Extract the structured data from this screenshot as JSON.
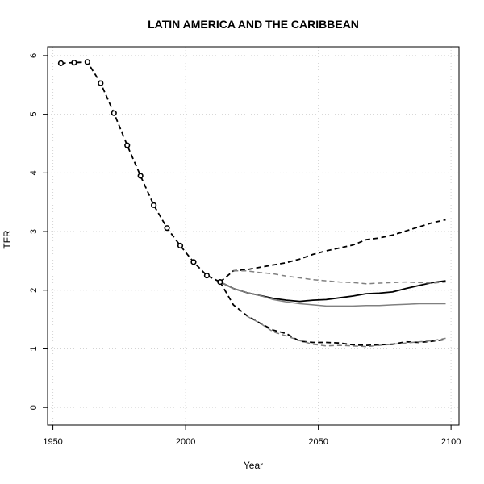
{
  "chart_data": {
    "type": "line",
    "title": "LATIN AMERICA AND THE CARIBBEAN",
    "xlabel": "Year",
    "ylabel": "TFR",
    "xlim": [
      1948,
      2103
    ],
    "ylim": [
      -0.3,
      6.15
    ],
    "x_ticks": [
      1950,
      2000,
      2050,
      2100
    ],
    "y_ticks": [
      0,
      1,
      2,
      3,
      4,
      5,
      6
    ],
    "grid": true,
    "series": [
      {
        "style": "observed",
        "color": "#000000",
        "dash": "dashed",
        "markers": true,
        "x": [
          1953,
          1958,
          1963,
          1968,
          1973,
          1978,
          1983,
          1988,
          1993,
          1998,
          2003,
          2008,
          2013
        ],
        "y": [
          5.87,
          5.88,
          5.89,
          5.53,
          5.02,
          4.47,
          3.95,
          3.45,
          3.06,
          2.76,
          2.48,
          2.25,
          2.14
        ]
      },
      {
        "style": "median",
        "color": "#000000",
        "dash": "solid",
        "x": [
          2013,
          2018,
          2023,
          2028,
          2033,
          2038,
          2043,
          2048,
          2053,
          2058,
          2063,
          2068,
          2073,
          2078,
          2083,
          2088,
          2093,
          2098
        ],
        "y": [
          2.14,
          2.03,
          1.96,
          1.91,
          1.86,
          1.83,
          1.81,
          1.83,
          1.84,
          1.87,
          1.9,
          1.94,
          1.95,
          1.97,
          2.03,
          2.08,
          2.13,
          2.16
        ]
      },
      {
        "style": "upper-80",
        "color": "#000000",
        "dash": "dashed",
        "x": [
          2013,
          2018,
          2023,
          2028,
          2033,
          2038,
          2043,
          2048,
          2053,
          2058,
          2063,
          2068,
          2073,
          2078,
          2083,
          2088,
          2093,
          2098
        ],
        "y": [
          2.14,
          2.33,
          2.35,
          2.39,
          2.43,
          2.47,
          2.53,
          2.61,
          2.67,
          2.72,
          2.77,
          2.86,
          2.89,
          2.94,
          3.01,
          3.08,
          3.15,
          3.2
        ]
      },
      {
        "style": "lower-80",
        "color": "#000000",
        "dash": "dashed",
        "x": [
          2013,
          2018,
          2023,
          2028,
          2033,
          2038,
          2043,
          2048,
          2053,
          2058,
          2063,
          2068,
          2073,
          2078,
          2083,
          2088,
          2093,
          2098
        ],
        "y": [
          2.14,
          1.75,
          1.57,
          1.44,
          1.32,
          1.26,
          1.13,
          1.11,
          1.11,
          1.1,
          1.07,
          1.06,
          1.07,
          1.08,
          1.12,
          1.11,
          1.13,
          1.16
        ]
      },
      {
        "style": "alt-median",
        "color": "#808080",
        "dash": "solid",
        "x": [
          2013,
          2018,
          2023,
          2028,
          2033,
          2038,
          2043,
          2048,
          2053,
          2058,
          2063,
          2068,
          2073,
          2078,
          2083,
          2088,
          2093,
          2098
        ],
        "y": [
          2.14,
          2.03,
          1.96,
          1.91,
          1.84,
          1.8,
          1.77,
          1.75,
          1.73,
          1.73,
          1.73,
          1.74,
          1.74,
          1.75,
          1.76,
          1.77,
          1.77,
          1.77
        ]
      },
      {
        "style": "alt-upper",
        "color": "#808080",
        "dash": "dashed",
        "x": [
          2018,
          2023,
          2028,
          2033,
          2038,
          2043,
          2048,
          2053,
          2058,
          2063,
          2068,
          2073,
          2078,
          2083,
          2088,
          2093,
          2098
        ],
        "y": [
          2.33,
          2.33,
          2.3,
          2.28,
          2.24,
          2.21,
          2.18,
          2.16,
          2.14,
          2.13,
          2.11,
          2.12,
          2.13,
          2.14,
          2.13,
          2.12,
          2.14
        ]
      },
      {
        "style": "alt-lower",
        "color": "#808080",
        "dash": "dashed",
        "x": [
          2023,
          2028,
          2033,
          2038,
          2043,
          2048,
          2053,
          2058,
          2063,
          2068,
          2073,
          2078,
          2083,
          2088,
          2093,
          2098
        ],
        "y": [
          1.56,
          1.44,
          1.29,
          1.22,
          1.14,
          1.08,
          1.05,
          1.06,
          1.05,
          1.04,
          1.06,
          1.08,
          1.1,
          1.12,
          1.14,
          1.18
        ]
      }
    ]
  }
}
